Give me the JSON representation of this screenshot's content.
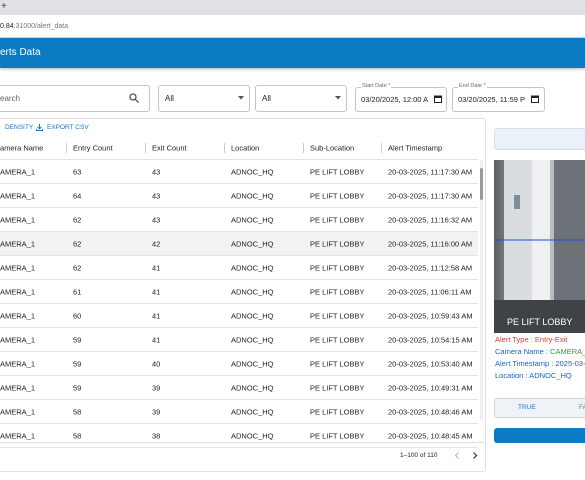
{
  "browser": {
    "tab_icon": "+",
    "url_host": "0.84",
    "url_path": ":31000/alert_data"
  },
  "header": {
    "title": "erts Data"
  },
  "filters": {
    "search_placeholder": "earch",
    "select_1": "All",
    "select_2": "All",
    "start_date": {
      "label": "Start Date *",
      "value": "03/20/2025, 12:00 A"
    },
    "end_date": {
      "label": "End Date *",
      "value": "03/20/2025, 11:59 P"
    }
  },
  "toolbar": {
    "density": "DENSITY",
    "export": "EXPORT CSV"
  },
  "table": {
    "columns": [
      "amera Name",
      "Entry Count",
      "Exit Count",
      "Location",
      "Sub-Location",
      "Alert Timestamp"
    ],
    "rows": [
      [
        "AMERA_1",
        63,
        43,
        "ADNOC_HQ",
        "PE LIFT LOBBY",
        "20-03-2025, 11:17:30 AM"
      ],
      [
        "AMERA_1",
        64,
        43,
        "ADNOC_HQ",
        "PE LIFT LOBBY",
        "20-03-2025, 11:17:30 AM"
      ],
      [
        "AMERA_1",
        62,
        43,
        "ADNOC_HQ",
        "PE LIFT LOBBY",
        "20-03-2025, 11:16:32 AM"
      ],
      [
        "AMERA_1",
        62,
        42,
        "ADNOC_HQ",
        "PE LIFT LOBBY",
        "20-03-2025, 11:16:00 AM"
      ],
      [
        "AMERA_1",
        62,
        41,
        "ADNOC_HQ",
        "PE LIFT LOBBY",
        "20-03-2025, 11:12:58 AM"
      ],
      [
        "AMERA_1",
        61,
        41,
        "ADNOC_HQ",
        "PE LIFT LOBBY",
        "20-03-2025, 11:06:11 AM"
      ],
      [
        "AMERA_1",
        60,
        41,
        "ADNOC_HQ",
        "PE LIFT LOBBY",
        "20-03-2025, 10:59:43 AM"
      ],
      [
        "AMERA_1",
        59,
        41,
        "ADNOC_HQ",
        "PE LIFT LOBBY",
        "20-03-2025, 10:54:15 AM"
      ],
      [
        "AMERA_1",
        59,
        40,
        "ADNOC_HQ",
        "PE LIFT LOBBY",
        "20-03-2025, 10:53:40 AM"
      ],
      [
        "AMERA_1",
        59,
        39,
        "ADNOC_HQ",
        "PE LIFT LOBBY",
        "20-03-2025, 10:49:31 AM"
      ],
      [
        "AMERA_1",
        58,
        39,
        "ADNOC_HQ",
        "PE LIFT LOBBY",
        "20-03-2025, 10:48:46 AM"
      ],
      [
        "AMERA_1",
        58,
        38,
        "ADNOC_HQ",
        "PE LIFT LOBBY",
        "20-03-2025, 10:48:45 AM"
      ]
    ]
  },
  "pagination": {
    "range": "1–100 of 110"
  },
  "detail": {
    "image_caption": "PE LIFT LOBBY",
    "alert_type": {
      "label": "Alert Type : ",
      "value": "Entry-Exit"
    },
    "camera_name": {
      "label": "Camera Name : ",
      "value": "CAMERA_"
    },
    "alert_timestamp": {
      "label": "Alert Timestamp : ",
      "value": "2025-03-"
    },
    "location": {
      "label": "Location : ",
      "value": "ADNOC_HQ"
    },
    "toggle": [
      "TRUE",
      "FA"
    ]
  }
}
